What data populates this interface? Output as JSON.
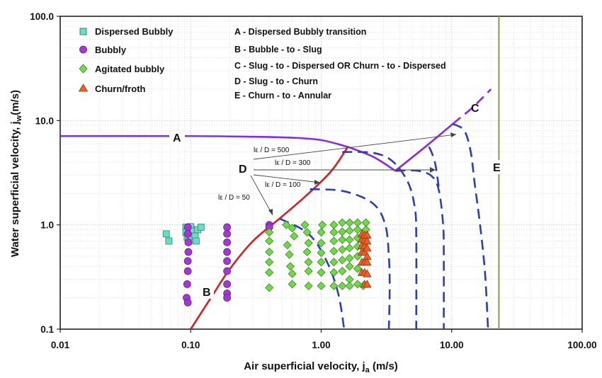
{
  "chart_data": {
    "type": "scatter",
    "xlabel": "Air superficial velocity, j",
    "xlabel_sub": "a",
    "xlabel_unit": " (m/s)",
    "ylabel": "Water superficial velocity, j",
    "ylabel_sub": "w",
    "ylabel_unit": "(m/s)",
    "x_scale": "log",
    "y_scale": "log",
    "xlim": [
      0.01,
      100
    ],
    "ylim": [
      0.1,
      100
    ],
    "x_ticks": [
      0.01,
      0.1,
      1,
      10,
      100
    ],
    "x_tick_labels": [
      "0.01",
      "0.10",
      "1.00",
      "10.00",
      "100.00"
    ],
    "y_ticks": [
      0.1,
      1,
      10,
      100
    ],
    "y_tick_labels": [
      "0.1",
      "1.0",
      "10.0",
      "100.0"
    ],
    "grid": true,
    "legend_position": "top-left",
    "series": [
      {
        "name": "Dispersed Bubbly",
        "marker": "square",
        "color": "#6fdcc0",
        "points": [
          [
            0.065,
            0.82
          ],
          [
            0.068,
            0.7
          ],
          [
            0.092,
            0.95
          ],
          [
            0.092,
            0.85
          ],
          [
            0.094,
            0.76
          ],
          [
            0.096,
            0.7
          ],
          [
            0.1,
            0.96
          ],
          [
            0.101,
            0.82
          ],
          [
            0.102,
            0.72
          ],
          [
            0.105,
            0.87
          ],
          [
            0.108,
            0.78
          ],
          [
            0.11,
            0.7
          ],
          [
            0.113,
            0.9
          ],
          [
            0.12,
            0.95
          ]
        ]
      },
      {
        "name": "Bubbly",
        "marker": "circle",
        "color": "#a23ad0",
        "points": [
          [
            0.095,
            0.95
          ],
          [
            0.095,
            0.82
          ],
          [
            0.096,
            0.68
          ],
          [
            0.096,
            0.55
          ],
          [
            0.095,
            0.45
          ],
          [
            0.095,
            0.36
          ],
          [
            0.094,
            0.27
          ],
          [
            0.093,
            0.2
          ],
          [
            0.095,
            0.18
          ],
          [
            0.19,
            0.95
          ],
          [
            0.19,
            0.82
          ],
          [
            0.19,
            0.68
          ],
          [
            0.19,
            0.55
          ],
          [
            0.19,
            0.45
          ],
          [
            0.19,
            0.36
          ],
          [
            0.19,
            0.27
          ],
          [
            0.19,
            0.22
          ],
          [
            0.19,
            0.2
          ],
          [
            0.4,
            1.0
          ],
          [
            0.4,
            0.95
          ]
        ]
      },
      {
        "name": "Agitated bubbly",
        "marker": "diamond",
        "color": "#70d84a",
        "points": [
          [
            0.4,
            0.85
          ],
          [
            0.4,
            0.7
          ],
          [
            0.4,
            0.55
          ],
          [
            0.4,
            0.44
          ],
          [
            0.4,
            0.35
          ],
          [
            0.4,
            0.25
          ],
          [
            0.54,
            1.0
          ],
          [
            0.6,
            0.93
          ],
          [
            0.62,
            0.78
          ],
          [
            0.55,
            0.64
          ],
          [
            0.57,
            0.52
          ],
          [
            0.58,
            0.4
          ],
          [
            0.6,
            0.34
          ],
          [
            0.6,
            0.27
          ],
          [
            0.75,
            1.0
          ],
          [
            0.78,
            0.85
          ],
          [
            0.8,
            0.67
          ],
          [
            0.78,
            0.55
          ],
          [
            0.8,
            0.44
          ],
          [
            0.8,
            0.36
          ],
          [
            0.8,
            0.26
          ],
          [
            1.02,
            1.0
          ],
          [
            1.0,
            0.85
          ],
          [
            1.0,
            0.67
          ],
          [
            1.0,
            0.54
          ],
          [
            1.0,
            0.44
          ],
          [
            1.0,
            0.35
          ],
          [
            1.0,
            0.26
          ],
          [
            1.25,
            1.0
          ],
          [
            1.25,
            0.85
          ],
          [
            1.25,
            0.7
          ],
          [
            1.25,
            0.56
          ],
          [
            1.25,
            0.44
          ],
          [
            1.25,
            0.35
          ],
          [
            1.25,
            0.26
          ],
          [
            1.45,
            1.05
          ],
          [
            1.45,
            0.86
          ],
          [
            1.45,
            0.72
          ],
          [
            1.45,
            0.58
          ],
          [
            1.45,
            0.46
          ],
          [
            1.45,
            0.36
          ],
          [
            1.45,
            0.26
          ],
          [
            1.65,
            1.05
          ],
          [
            1.65,
            0.88
          ],
          [
            1.65,
            0.72
          ],
          [
            1.65,
            0.6
          ],
          [
            1.65,
            0.48
          ],
          [
            1.65,
            0.4
          ],
          [
            1.65,
            0.3
          ],
          [
            1.65,
            0.26
          ],
          [
            1.9,
            1.05
          ],
          [
            1.9,
            0.9
          ],
          [
            1.9,
            0.75
          ],
          [
            1.9,
            0.62
          ],
          [
            1.9,
            0.5
          ],
          [
            1.9,
            0.38
          ],
          [
            1.9,
            0.27
          ],
          [
            2.2,
            1.05
          ],
          [
            2.2,
            0.9
          ],
          [
            2.1,
            0.26
          ]
        ]
      },
      {
        "name": "Churn/froth",
        "marker": "triangle",
        "color": "#e8622a",
        "points": [
          [
            2.05,
            0.82
          ],
          [
            2.05,
            0.73
          ],
          [
            2.05,
            0.63
          ],
          [
            2.05,
            0.55
          ],
          [
            2.05,
            0.44
          ],
          [
            2.05,
            0.35
          ],
          [
            2.15,
            0.8
          ],
          [
            2.15,
            0.72
          ],
          [
            2.15,
            0.63
          ],
          [
            2.15,
            0.55
          ],
          [
            2.15,
            0.44
          ],
          [
            2.15,
            0.35
          ],
          [
            2.25,
            0.8
          ],
          [
            2.25,
            0.7
          ],
          [
            2.25,
            0.6
          ],
          [
            2.25,
            0.5
          ],
          [
            2.25,
            0.44
          ],
          [
            2.25,
            0.34
          ],
          [
            2.15,
            0.27
          ],
          [
            2.25,
            0.27
          ]
        ]
      }
    ],
    "transition_lines": [
      {
        "label": "A",
        "color": "#8a2be2",
        "style": "solid",
        "points": [
          [
            0.01,
            7.1
          ],
          [
            0.1,
            7.1
          ],
          [
            0.3,
            7.0
          ],
          [
            0.6,
            6.85
          ],
          [
            1.0,
            6.5
          ],
          [
            1.6,
            5.6
          ]
        ]
      },
      {
        "label": "A2",
        "color": "#8a2be2",
        "style": "solid",
        "points": [
          [
            1.6,
            5.6
          ],
          [
            2.5,
            4.5
          ],
          [
            3.7,
            3.3
          ]
        ]
      },
      {
        "label": "C",
        "color": "#8a2be2",
        "style": "solid",
        "points": [
          [
            3.7,
            3.3
          ],
          [
            6.5,
            5.8
          ],
          [
            10.2,
            9.3
          ]
        ]
      },
      {
        "label": "C2",
        "color": "#8a2be2",
        "style": "dashed",
        "points": [
          [
            10.2,
            9.3
          ],
          [
            12.0,
            11.0
          ],
          [
            14.6,
            13.5
          ],
          [
            20.0,
            20.0
          ]
        ]
      },
      {
        "label": "B",
        "color": "#d42020",
        "style": "solid",
        "points": [
          [
            0.1,
            0.1
          ],
          [
            0.15,
            0.22
          ],
          [
            0.2,
            0.38
          ],
          [
            0.3,
            0.7
          ],
          [
            0.5,
            1.2
          ],
          [
            0.8,
            2.0
          ],
          [
            1.2,
            3.3
          ],
          [
            1.6,
            5.6
          ]
        ]
      },
      {
        "label": "D50",
        "color": "#2b3db8",
        "style": "dashed",
        "points": [
          [
            0.48,
            1.15
          ],
          [
            0.8,
            0.82
          ],
          [
            1.1,
            0.45
          ],
          [
            1.35,
            0.22
          ],
          [
            1.5,
            0.1
          ]
        ]
      },
      {
        "label": "D100",
        "color": "#2b3db8",
        "style": "dashed",
        "points": [
          [
            0.82,
            2.2
          ],
          [
            1.5,
            2.1
          ],
          [
            2.5,
            1.6
          ],
          [
            3.1,
            1.0
          ],
          [
            3.3,
            0.5
          ],
          [
            3.35,
            0.25
          ],
          [
            3.3,
            0.1
          ]
        ]
      },
      {
        "label": "D300",
        "color": "#2b3db8",
        "style": "dashed",
        "points": [
          [
            1.45,
            5.0
          ],
          [
            2.5,
            4.9
          ],
          [
            3.5,
            4.1
          ],
          [
            4.6,
            2.6
          ],
          [
            5.2,
            1.5
          ],
          [
            5.35,
            0.8
          ],
          [
            5.35,
            0.1
          ]
        ]
      },
      {
        "label": "D500",
        "color": "#2b3db8",
        "style": "dashed",
        "points": [
          [
            3.7,
            3.3
          ],
          [
            5.5,
            3.3
          ],
          [
            7.1,
            2.9
          ],
          [
            8.0,
            2.1
          ],
          [
            8.6,
            1.0
          ],
          [
            8.7,
            0.5
          ],
          [
            8.7,
            0.1
          ]
        ]
      },
      {
        "label": "Dsb",
        "color": "#2b3db8",
        "style": "dashed",
        "points": [
          [
            6.7,
            5.6
          ],
          [
            7.0,
            5.0
          ],
          [
            7.5,
            3.8
          ],
          [
            8.0,
            2.2
          ]
        ]
      },
      {
        "label": "D-outer",
        "color": "#2b3db8",
        "style": "dashed",
        "points": [
          [
            10.2,
            9.3
          ],
          [
            12.5,
            8.0
          ],
          [
            14.0,
            5.0
          ],
          [
            15.0,
            2.5
          ],
          [
            16.5,
            1.0
          ],
          [
            18.0,
            0.35
          ],
          [
            19.0,
            0.1
          ]
        ]
      },
      {
        "label": "E",
        "color": "#8a9a4a",
        "style": "solid",
        "points": [
          [
            23.0,
            0.1
          ],
          [
            23.0,
            100
          ]
        ]
      }
    ],
    "letters": [
      "A",
      "B",
      "C",
      "D",
      "E"
    ],
    "ld_labels": [
      "lε / D = 500",
      "lε / D = 300",
      "lε / D = 100",
      "lε / D = 50"
    ],
    "notes": [
      "A - Dispersed Bubbly transition",
      "B - Bubble - to - Slug",
      "C - Slug - to - Dispersed OR Churn - to - Dispersed",
      "D - Slug - to - Churn",
      "E - Churn - to - Annular"
    ]
  }
}
